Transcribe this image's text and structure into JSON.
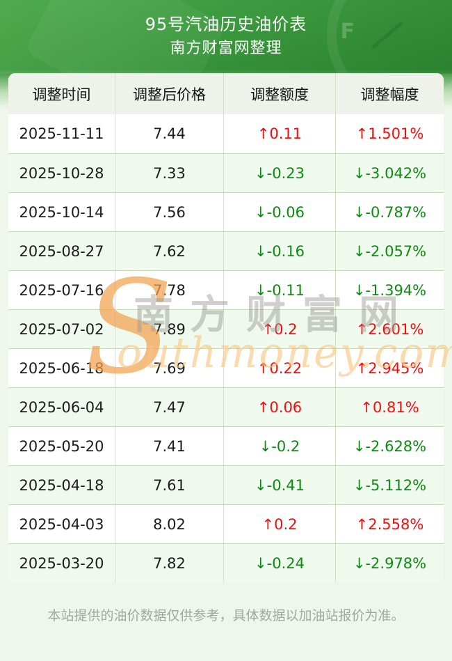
{
  "header": {
    "title": "95号汽油历史油价表",
    "subtitle": "南方财富网整理",
    "photo_overlay_letter": "F"
  },
  "table": {
    "columns": [
      "调整时间",
      "调整后价格",
      "调整额度",
      "调整幅度"
    ],
    "rows": [
      {
        "date": "2025-11-11",
        "price": "7.44",
        "change": "↑0.11",
        "percent": "↑1.501%",
        "dir": "up"
      },
      {
        "date": "2025-10-28",
        "price": "7.33",
        "change": "↓-0.23",
        "percent": "↓-3.042%",
        "dir": "down"
      },
      {
        "date": "2025-10-14",
        "price": "7.56",
        "change": "↓-0.06",
        "percent": "↓-0.787%",
        "dir": "down"
      },
      {
        "date": "2025-08-27",
        "price": "7.62",
        "change": "↓-0.16",
        "percent": "↓-2.057%",
        "dir": "down"
      },
      {
        "date": "2025-07-16",
        "price": "7.78",
        "change": "↓-0.11",
        "percent": "↓-1.394%",
        "dir": "down"
      },
      {
        "date": "2025-07-02",
        "price": "7.89",
        "change": "↑0.2",
        "percent": "↑2.601%",
        "dir": "up"
      },
      {
        "date": "2025-06-18",
        "price": "7.69",
        "change": "↑0.22",
        "percent": "↑2.945%",
        "dir": "up"
      },
      {
        "date": "2025-06-04",
        "price": "7.47",
        "change": "↑0.06",
        "percent": "↑0.81%",
        "dir": "up"
      },
      {
        "date": "2025-05-20",
        "price": "7.41",
        "change": "↓-0.2",
        "percent": "↓-2.628%",
        "dir": "down"
      },
      {
        "date": "2025-04-18",
        "price": "7.61",
        "change": "↓-0.41",
        "percent": "↓-5.112%",
        "dir": "down"
      },
      {
        "date": "2025-04-03",
        "price": "8.02",
        "change": "↑0.2",
        "percent": "↑2.558%",
        "dir": "up"
      },
      {
        "date": "2025-03-20",
        "price": "7.82",
        "change": "↓-0.24",
        "percent": "↓-2.978%",
        "dir": "down"
      }
    ]
  },
  "watermark": {
    "swoosh": "S",
    "cn": "南方财富网",
    "en": "outhmoney.com"
  },
  "footer": {
    "note": "本站提供的油价数据仅供参考，具体数据以加油站报价为准。"
  },
  "colors": {
    "up": "#f50d0d",
    "down": "#0d8a11",
    "hero_green_left": "#3e9e42",
    "hero_green_right": "#2e8a33",
    "alt_row": "#f0f9ee",
    "header_row_bg": "#eef2ea",
    "cell_border": "#c8d9bc",
    "footer_text": "#9da89c",
    "watermark_orange": "#f2a14e",
    "watermark_gray": "#9c9c95"
  }
}
